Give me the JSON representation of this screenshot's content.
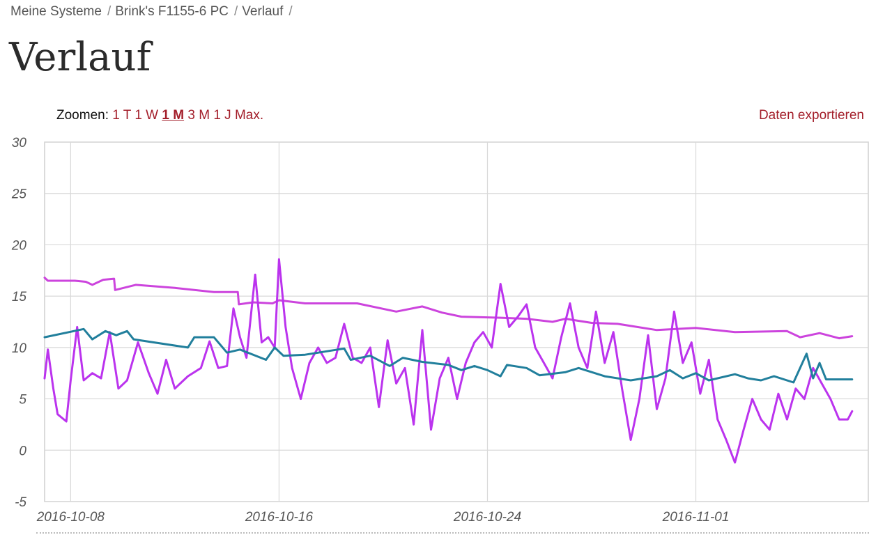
{
  "breadcrumb": {
    "items": [
      "Meine Systeme",
      "Brink's F1155-6 PC",
      "Verlauf"
    ],
    "separator": "/"
  },
  "page": {
    "title": "Verlauf"
  },
  "zoom": {
    "label": "Zoomen:",
    "options": [
      "1 T",
      "1 W",
      "1 M",
      "3 M",
      "1 J",
      "Max."
    ],
    "active": "1 M"
  },
  "export": {
    "label": "Daten exportieren"
  },
  "colors": {
    "accent": "#a31e2a",
    "series_magenta": "#cc44dd",
    "series_violet": "#bb33ee",
    "series_teal": "#217f9c",
    "grid": "#d9d9d9"
  },
  "chart_data": {
    "type": "line",
    "title": "",
    "xlabel": "",
    "ylabel": "",
    "ylim": [
      -5,
      30
    ],
    "yticks": [
      -5,
      0,
      5,
      10,
      15,
      20,
      25,
      30
    ],
    "xlim": [
      "2016-10-07",
      "2016-11-07"
    ],
    "xticks": [
      "2016-10-08",
      "2016-10-16",
      "2016-10-24",
      "2016-11-01"
    ],
    "grid": true,
    "series": [
      {
        "color": "#cc44dd",
        "points": [
          [
            "2016-10-07T00:00",
            16.8
          ],
          [
            "2016-10-07T03:00",
            16.5
          ],
          [
            "2016-10-08T04:00",
            16.5
          ],
          [
            "2016-10-08T14:00",
            16.4
          ],
          [
            "2016-10-08T20:00",
            16.1
          ],
          [
            "2016-10-09T06:00",
            16.6
          ],
          [
            "2016-10-09T16:00",
            16.7
          ],
          [
            "2016-10-09T17:00",
            15.6
          ],
          [
            "2016-10-10T12:00",
            16.1
          ],
          [
            "2016-10-12T00:00",
            15.8
          ],
          [
            "2016-10-13T12:00",
            15.4
          ],
          [
            "2016-10-14T10:00",
            15.4
          ],
          [
            "2016-10-14T11:00",
            14.2
          ],
          [
            "2016-10-15T00:00",
            14.4
          ],
          [
            "2016-10-15T18:00",
            14.3
          ],
          [
            "2016-10-16T00:00",
            14.6
          ],
          [
            "2016-10-17T00:00",
            14.3
          ],
          [
            "2016-10-19T00:00",
            14.3
          ],
          [
            "2016-10-20T12:00",
            13.5
          ],
          [
            "2016-10-21T12:00",
            14.0
          ],
          [
            "2016-10-22T06:00",
            13.4
          ],
          [
            "2016-10-23T00:00",
            13.0
          ],
          [
            "2016-10-24T12:00",
            12.9
          ],
          [
            "2016-10-25T12:00",
            12.8
          ],
          [
            "2016-10-26T12:00",
            12.5
          ],
          [
            "2016-10-27T00:00",
            12.8
          ],
          [
            "2016-10-28T00:00",
            12.4
          ],
          [
            "2016-10-29T00:00",
            12.3
          ],
          [
            "2016-10-30T12:00",
            11.7
          ],
          [
            "2016-11-01T00:00",
            11.9
          ],
          [
            "2016-11-02T12:00",
            11.5
          ],
          [
            "2016-11-04T12:00",
            11.6
          ],
          [
            "2016-11-05T00:00",
            11.0
          ],
          [
            "2016-11-05T18:00",
            11.4
          ],
          [
            "2016-11-06T12:00",
            10.9
          ],
          [
            "2016-11-07T00:00",
            11.1
          ]
        ]
      },
      {
        "color": "#bb33ee",
        "points": [
          [
            "2016-10-07T00:00",
            7.0
          ],
          [
            "2016-10-07T03:00",
            9.8
          ],
          [
            "2016-10-07T08:00",
            6.0
          ],
          [
            "2016-10-07T12:00",
            3.5
          ],
          [
            "2016-10-07T20:00",
            2.8
          ],
          [
            "2016-10-08T00:00",
            6.8
          ],
          [
            "2016-10-08T06:00",
            12.0
          ],
          [
            "2016-10-08T12:00",
            6.8
          ],
          [
            "2016-10-08T20:00",
            7.5
          ],
          [
            "2016-10-09T04:00",
            7.0
          ],
          [
            "2016-10-09T12:00",
            11.5
          ],
          [
            "2016-10-09T20:00",
            6.0
          ],
          [
            "2016-10-10T04:00",
            6.8
          ],
          [
            "2016-10-10T14:00",
            10.5
          ],
          [
            "2016-10-11T00:00",
            7.5
          ],
          [
            "2016-10-11T08:00",
            5.5
          ],
          [
            "2016-10-11T16:00",
            8.8
          ],
          [
            "2016-10-12T00:00",
            6.0
          ],
          [
            "2016-10-12T12:00",
            7.2
          ],
          [
            "2016-10-13T00:00",
            8.0
          ],
          [
            "2016-10-13T08:00",
            10.6
          ],
          [
            "2016-10-13T16:00",
            8.0
          ],
          [
            "2016-10-14T00:00",
            8.2
          ],
          [
            "2016-10-14T06:00",
            13.8
          ],
          [
            "2016-10-14T12:00",
            11.0
          ],
          [
            "2016-10-14T18:00",
            9.0
          ],
          [
            "2016-10-15T02:00",
            17.1
          ],
          [
            "2016-10-15T08:00",
            10.5
          ],
          [
            "2016-10-15T14:00",
            11.0
          ],
          [
            "2016-10-15T20:00",
            10.0
          ],
          [
            "2016-10-16T00:00",
            18.6
          ],
          [
            "2016-10-16T06:00",
            12.0
          ],
          [
            "2016-10-16T12:00",
            8.0
          ],
          [
            "2016-10-16T20:00",
            5.0
          ],
          [
            "2016-10-17T04:00",
            8.5
          ],
          [
            "2016-10-17T12:00",
            10.0
          ],
          [
            "2016-10-17T20:00",
            8.5
          ],
          [
            "2016-10-18T04:00",
            9.0
          ],
          [
            "2016-10-18T12:00",
            12.3
          ],
          [
            "2016-10-18T20:00",
            9.0
          ],
          [
            "2016-10-19T04:00",
            8.5
          ],
          [
            "2016-10-19T12:00",
            10.0
          ],
          [
            "2016-10-19T20:00",
            4.2
          ],
          [
            "2016-10-20T04:00",
            10.7
          ],
          [
            "2016-10-20T12:00",
            6.5
          ],
          [
            "2016-10-20T20:00",
            8.0
          ],
          [
            "2016-10-21T04:00",
            2.5
          ],
          [
            "2016-10-21T12:00",
            11.7
          ],
          [
            "2016-10-21T20:00",
            2.0
          ],
          [
            "2016-10-22T04:00",
            7.0
          ],
          [
            "2016-10-22T12:00",
            9.0
          ],
          [
            "2016-10-22T20:00",
            5.0
          ],
          [
            "2016-10-23T04:00",
            8.5
          ],
          [
            "2016-10-23T12:00",
            10.5
          ],
          [
            "2016-10-23T20:00",
            11.5
          ],
          [
            "2016-10-24T04:00",
            10.0
          ],
          [
            "2016-10-24T12:00",
            16.2
          ],
          [
            "2016-10-24T20:00",
            12.0
          ],
          [
            "2016-10-25T04:00",
            13.0
          ],
          [
            "2016-10-25T12:00",
            14.2
          ],
          [
            "2016-10-25T20:00",
            10.0
          ],
          [
            "2016-10-26T04:00",
            8.5
          ],
          [
            "2016-10-26T12:00",
            7.0
          ],
          [
            "2016-10-26T20:00",
            11.0
          ],
          [
            "2016-10-27T04:00",
            14.3
          ],
          [
            "2016-10-27T12:00",
            10.0
          ],
          [
            "2016-10-27T20:00",
            8.0
          ],
          [
            "2016-10-28T04:00",
            13.5
          ],
          [
            "2016-10-28T12:00",
            8.5
          ],
          [
            "2016-10-28T20:00",
            11.5
          ],
          [
            "2016-10-29T04:00",
            6.0
          ],
          [
            "2016-10-29T12:00",
            1.0
          ],
          [
            "2016-10-29T20:00",
            5.0
          ],
          [
            "2016-10-30T04:00",
            11.2
          ],
          [
            "2016-10-30T12:00",
            4.0
          ],
          [
            "2016-10-30T20:00",
            7.0
          ],
          [
            "2016-10-31T04:00",
            13.5
          ],
          [
            "2016-10-31T12:00",
            8.5
          ],
          [
            "2016-10-31T20:00",
            10.5
          ],
          [
            "2016-11-01T04:00",
            5.5
          ],
          [
            "2016-11-01T12:00",
            8.8
          ],
          [
            "2016-11-01T20:00",
            3.0
          ],
          [
            "2016-11-02T04:00",
            1.0
          ],
          [
            "2016-11-02T12:00",
            -1.2
          ],
          [
            "2016-11-02T20:00",
            2.0
          ],
          [
            "2016-11-03T04:00",
            5.0
          ],
          [
            "2016-11-03T12:00",
            3.0
          ],
          [
            "2016-11-03T20:00",
            2.0
          ],
          [
            "2016-11-04T04:00",
            5.5
          ],
          [
            "2016-11-04T12:00",
            3.0
          ],
          [
            "2016-11-04T20:00",
            6.0
          ],
          [
            "2016-11-05T04:00",
            5.0
          ],
          [
            "2016-11-05T12:00",
            8.0
          ],
          [
            "2016-11-05T20:00",
            6.5
          ],
          [
            "2016-11-06T04:00",
            5.0
          ],
          [
            "2016-11-06T12:00",
            3.0
          ],
          [
            "2016-11-06T20:00",
            3.0
          ],
          [
            "2016-11-07T00:00",
            3.8
          ]
        ]
      },
      {
        "color": "#217f9c",
        "points": [
          [
            "2016-10-07T00:00",
            11.0
          ],
          [
            "2016-10-08T12:00",
            11.8
          ],
          [
            "2016-10-08T20:00",
            10.8
          ],
          [
            "2016-10-09T08:00",
            11.6
          ],
          [
            "2016-10-09T18:00",
            11.2
          ],
          [
            "2016-10-10T04:00",
            11.6
          ],
          [
            "2016-10-10T10:00",
            10.8
          ],
          [
            "2016-10-12T12:00",
            10.0
          ],
          [
            "2016-10-12T18:00",
            11.0
          ],
          [
            "2016-10-13T12:00",
            11.0
          ],
          [
            "2016-10-14T00:00",
            9.5
          ],
          [
            "2016-10-14T12:00",
            9.8
          ],
          [
            "2016-10-15T12:00",
            8.8
          ],
          [
            "2016-10-15T20:00",
            10.0
          ],
          [
            "2016-10-16T04:00",
            9.2
          ],
          [
            "2016-10-17T00:00",
            9.3
          ],
          [
            "2016-10-18T12:00",
            9.9
          ],
          [
            "2016-10-18T18:00",
            8.8
          ],
          [
            "2016-10-19T12:00",
            9.2
          ],
          [
            "2016-10-20T06:00",
            8.2
          ],
          [
            "2016-10-20T18:00",
            9.0
          ],
          [
            "2016-10-21T12:00",
            8.6
          ],
          [
            "2016-10-22T12:00",
            8.3
          ],
          [
            "2016-10-23T00:00",
            7.8
          ],
          [
            "2016-10-23T12:00",
            8.2
          ],
          [
            "2016-10-24T00:00",
            7.8
          ],
          [
            "2016-10-24T12:00",
            7.2
          ],
          [
            "2016-10-24T18:00",
            8.3
          ],
          [
            "2016-10-25T12:00",
            8.0
          ],
          [
            "2016-10-26T00:00",
            7.3
          ],
          [
            "2016-10-27T00:00",
            7.6
          ],
          [
            "2016-10-27T12:00",
            8.0
          ],
          [
            "2016-10-28T12:00",
            7.2
          ],
          [
            "2016-10-29T12:00",
            6.8
          ],
          [
            "2016-10-30T12:00",
            7.2
          ],
          [
            "2016-10-31T00:00",
            7.8
          ],
          [
            "2016-10-31T12:00",
            7.0
          ],
          [
            "2016-11-01T00:00",
            7.5
          ],
          [
            "2016-11-01T12:00",
            6.8
          ],
          [
            "2016-11-02T12:00",
            7.4
          ],
          [
            "2016-11-03T00:00",
            7.0
          ],
          [
            "2016-11-03T12:00",
            6.8
          ],
          [
            "2016-11-04T00:00",
            7.2
          ],
          [
            "2016-11-04T18:00",
            6.6
          ],
          [
            "2016-11-05T06:00",
            9.4
          ],
          [
            "2016-11-05T12:00",
            7.0
          ],
          [
            "2016-11-05T18:00",
            8.5
          ],
          [
            "2016-11-06T00:00",
            6.9
          ],
          [
            "2016-11-07T00:00",
            6.9
          ]
        ]
      }
    ]
  }
}
